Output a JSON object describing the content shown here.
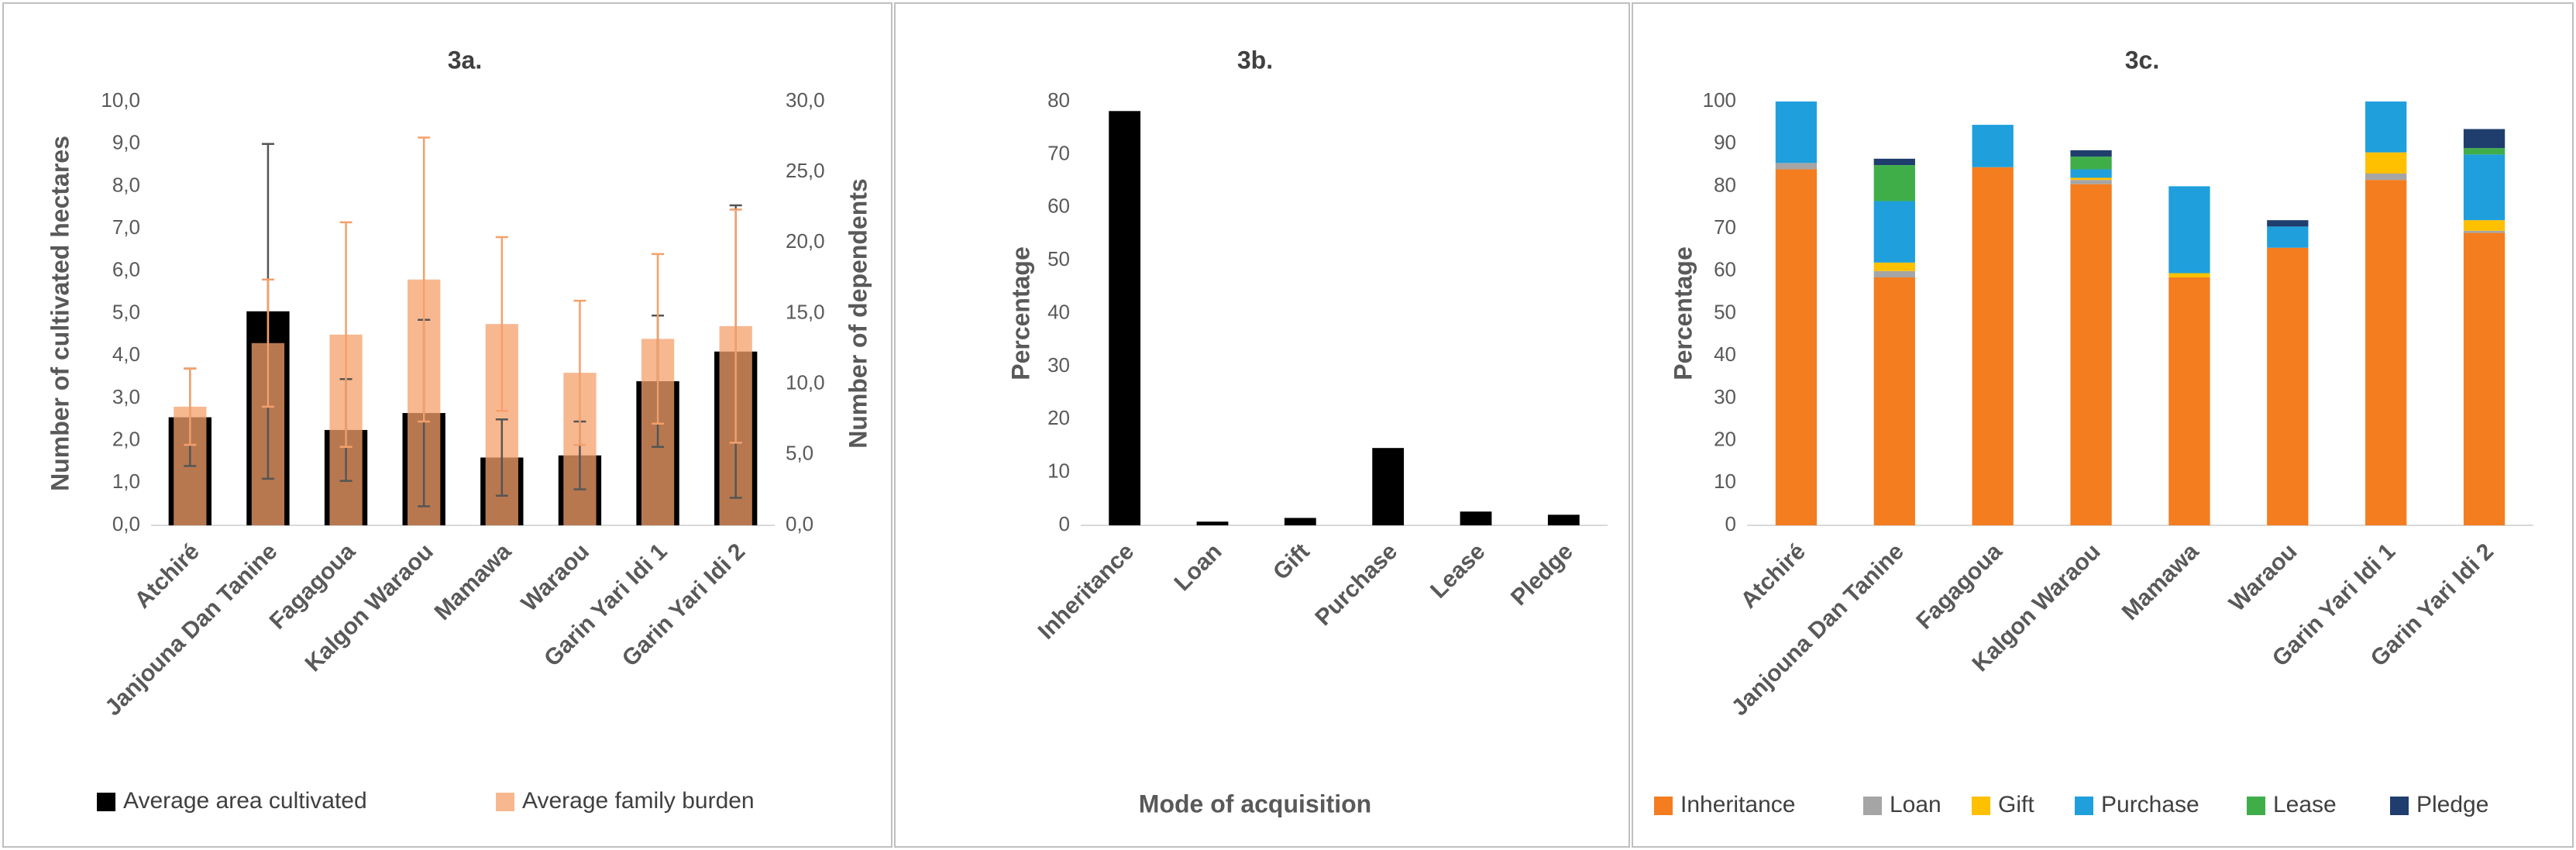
{
  "chart_data": [
    {
      "type": "bar",
      "title": "3a.",
      "categories": [
        "Atchiré",
        "Janjouna Dan Tanine",
        "Fagagoua",
        "Kalgon Waraou",
        "Mamawa",
        "Waraou",
        "Garin Yari Idi 1",
        "Garin Yari Idi 2"
      ],
      "ylabel": "Number of cultivated hectares",
      "y2label": "Number of dependents",
      "ylim": [
        0,
        10
      ],
      "yticks": [
        {
          "value": 0,
          "label": "0,0"
        },
        {
          "value": 1,
          "label": "1,0"
        },
        {
          "value": 2,
          "label": "2,0"
        },
        {
          "value": 3,
          "label": "3,0"
        },
        {
          "value": 4,
          "label": "4,0"
        },
        {
          "value": 5,
          "label": "5,0"
        },
        {
          "value": 6,
          "label": "6,0"
        },
        {
          "value": 7,
          "label": "7,0"
        },
        {
          "value": 8,
          "label": "8,0"
        },
        {
          "value": 9,
          "label": "9,0"
        },
        {
          "value": 10,
          "label": "10,0"
        }
      ],
      "y2lim": [
        0,
        30
      ],
      "y2ticks": [
        {
          "value": 0,
          "label": "0,0"
        },
        {
          "value": 5,
          "label": "5,0"
        },
        {
          "value": 10,
          "label": "10,0"
        },
        {
          "value": 15,
          "label": "15,0"
        },
        {
          "value": 20,
          "label": "20,0"
        },
        {
          "value": 25,
          "label": "25,0"
        },
        {
          "value": 30,
          "label": "30,0"
        }
      ],
      "legend": "bottom",
      "series": [
        {
          "name": "Average area cultivated",
          "color": "#000000",
          "error_color": "#555555",
          "values": [
            2.55,
            5.05,
            2.25,
            2.65,
            1.6,
            1.65,
            3.4,
            4.1
          ],
          "errors": [
            1.15,
            3.95,
            1.2,
            2.2,
            0.9,
            0.8,
            1.55,
            3.45
          ]
        },
        {
          "name": "Average family burden",
          "color": "#f4a06b",
          "error_color": "#f4a06b",
          "axis": "y2",
          "values": [
            8.4,
            12.9,
            13.5,
            17.4,
            14.25,
            10.8,
            13.2,
            14.1
          ],
          "errors": [
            2.7,
            4.5,
            7.95,
            10.05,
            6.15,
            5.1,
            6.0,
            8.25
          ]
        }
      ]
    },
    {
      "type": "bar",
      "title": "3b.",
      "categories": [
        "Inheritance",
        "Loan",
        "Gift",
        "Purchase",
        "Lease",
        "Pledge"
      ],
      "xlabel": "Mode of acquisition",
      "ylabel": "Percentage",
      "ylim": [
        0,
        80
      ],
      "yticks": [
        0,
        10,
        20,
        30,
        40,
        50,
        60,
        70,
        80
      ],
      "series": [
        {
          "color": "#000000",
          "values": [
            78.2,
            0.7,
            1.4,
            14.6,
            2.6,
            2.0
          ]
        }
      ]
    },
    {
      "type": "stacked_bar",
      "title": "3c.",
      "categories": [
        "Atchiré",
        "Janjouna Dan Tanine",
        "Fagagoua",
        "Kalgon Waraou",
        "Mamawa",
        "Waraou",
        "Garin Yari Idi 1",
        "Garin Yari Idi 2"
      ],
      "ylabel": "Percentage",
      "ylim": [
        0,
        100
      ],
      "yticks": [
        0,
        10,
        20,
        30,
        40,
        50,
        60,
        70,
        80,
        90,
        100
      ],
      "legend": "bottom",
      "series": [
        {
          "name": "Inheritance",
          "color": "#f47d20",
          "values": [
            84,
            58.5,
            84.5,
            80.5,
            58.5,
            65.5,
            81.5,
            69
          ]
        },
        {
          "name": "Loan",
          "color": "#a5a5a5",
          "values": [
            1.5,
            1.5,
            0,
            1.0,
            0,
            0,
            1.5,
            0.5
          ]
        },
        {
          "name": "Gift",
          "color": "#ffc000",
          "values": [
            0,
            2.0,
            0,
            0.5,
            1.0,
            0,
            5.0,
            2.5
          ]
        },
        {
          "name": "Purchase",
          "color": "#1f9fdc",
          "values": [
            14.5,
            14.5,
            10,
            2,
            20.5,
            5,
            12,
            15.5
          ]
        },
        {
          "name": "Lease",
          "color": "#3fae49",
          "values": [
            0,
            8.5,
            0,
            3,
            0,
            0,
            0,
            1.5
          ]
        },
        {
          "name": "Pledge",
          "color": "#1f3e6e",
          "values": [
            0,
            1.5,
            0,
            1.5,
            0,
            1.5,
            0,
            4.5
          ]
        }
      ]
    }
  ]
}
